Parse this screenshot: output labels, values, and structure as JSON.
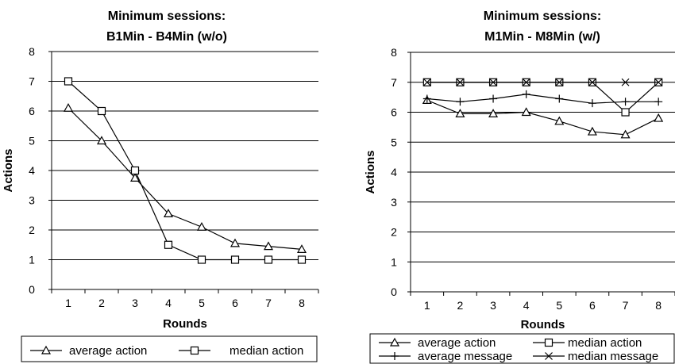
{
  "chart_data": [
    {
      "type": "line",
      "title": [
        "Minimum sessions:",
        "B1Min - B4Min (w/o)"
      ],
      "xlabel": "Rounds",
      "ylabel": "Actions",
      "x": [
        1,
        2,
        3,
        4,
        5,
        6,
        7,
        8
      ],
      "ylim": [
        0,
        8
      ],
      "yticks": [
        0,
        1,
        2,
        3,
        4,
        5,
        6,
        7,
        8
      ],
      "grid": "horizontal",
      "legend": "bottom",
      "series": [
        {
          "name": "average action",
          "marker": "triangle",
          "values": [
            6.1,
            5.0,
            3.75,
            2.55,
            2.1,
            1.55,
            1.45,
            1.35
          ]
        },
        {
          "name": "median action",
          "marker": "square",
          "values": [
            7,
            6,
            4,
            1.5,
            1,
            1,
            1,
            1
          ]
        }
      ]
    },
    {
      "type": "line",
      "title": [
        "Minimum sessions:",
        "M1Min - M8Min (w/)"
      ],
      "xlabel": "Rounds",
      "ylabel": "Actions",
      "x": [
        1,
        2,
        3,
        4,
        5,
        6,
        7,
        8
      ],
      "ylim": [
        0,
        8
      ],
      "yticks": [
        0,
        1,
        2,
        3,
        4,
        5,
        6,
        7,
        8
      ],
      "grid": "horizontal",
      "legend": "bottom",
      "series": [
        {
          "name": "average action",
          "marker": "triangle",
          "values": [
            6.4,
            5.95,
            5.95,
            6.0,
            5.7,
            5.35,
            5.25,
            5.8
          ]
        },
        {
          "name": "median action",
          "marker": "square",
          "values": [
            7,
            7,
            7,
            7,
            7,
            7,
            6,
            7
          ]
        },
        {
          "name": "average message",
          "marker": "plus",
          "values": [
            6.45,
            6.35,
            6.45,
            6.6,
            6.45,
            6.3,
            6.35,
            6.35
          ]
        },
        {
          "name": "median message",
          "marker": "x",
          "values": [
            7,
            7,
            7,
            7,
            7,
            7,
            7,
            7
          ]
        }
      ]
    }
  ]
}
